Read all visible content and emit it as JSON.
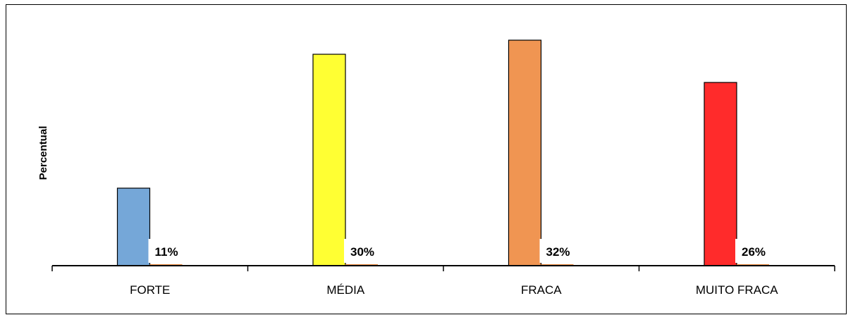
{
  "chart_data": {
    "type": "bar",
    "title": "",
    "xlabel": "",
    "ylabel": "Percentual",
    "categories": [
      "FORTE",
      "MÉDIA",
      "FRACA",
      "MUITO FRACA"
    ],
    "values": [
      11,
      30,
      32,
      26
    ],
    "value_labels": [
      "11%",
      "30%",
      "32%",
      "26%"
    ],
    "colors": [
      "#75A7D8",
      "#FFFF33",
      "#F09552",
      "#FF2B2B"
    ],
    "secondary_bar_color": "#E8863A",
    "ylim": [
      0,
      34
    ],
    "grid": false,
    "legend": "none"
  }
}
